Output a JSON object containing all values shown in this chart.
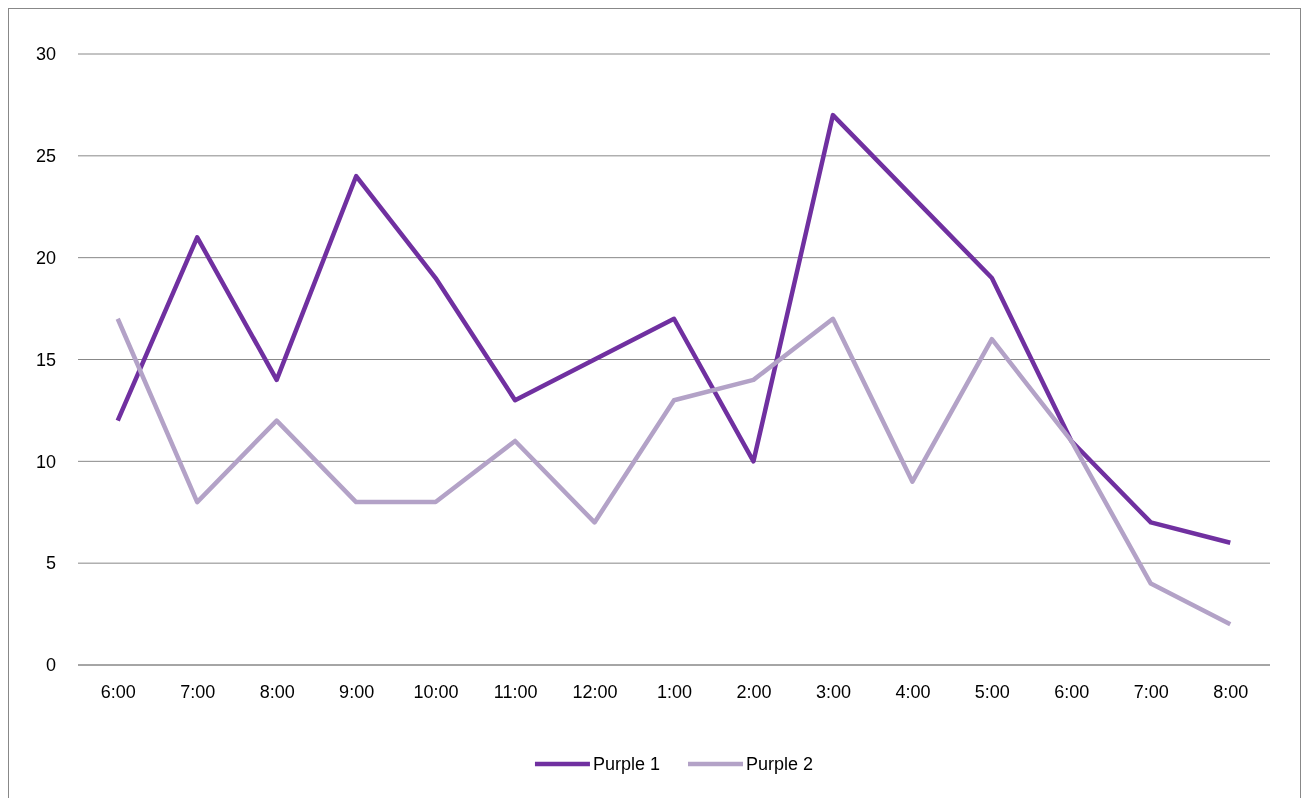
{
  "chart_data": {
    "type": "line",
    "categories": [
      "6:00",
      "7:00",
      "8:00",
      "9:00",
      "10:00",
      "11:00",
      "12:00",
      "1:00",
      "2:00",
      "3:00",
      "4:00",
      "5:00",
      "6:00",
      "7:00",
      "8:00"
    ],
    "series": [
      {
        "name": "Purple 1",
        "color": "#7030a0",
        "values": [
          12,
          21,
          14,
          24,
          19,
          13,
          15,
          17,
          10,
          27,
          23,
          19,
          11,
          7,
          6
        ]
      },
      {
        "name": "Purple 2",
        "color": "#b3a2c7",
        "values": [
          17,
          8,
          12,
          8,
          8,
          11,
          7,
          13,
          14,
          17,
          9,
          16,
          11,
          4,
          2
        ]
      }
    ],
    "ylim": [
      0,
      30
    ],
    "yticks": [
      0,
      5,
      10,
      15,
      20,
      25,
      30
    ],
    "grid": "y",
    "legend": "bottom",
    "marker": "none",
    "line_style": "solid"
  }
}
